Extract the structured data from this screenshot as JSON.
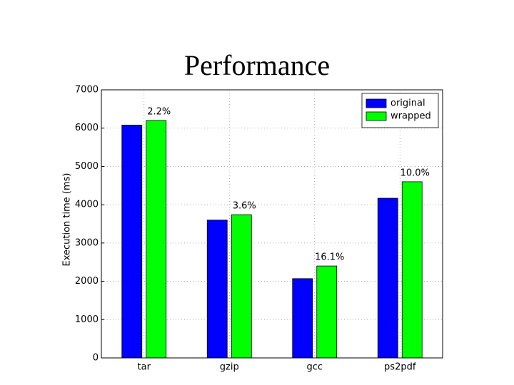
{
  "chart_data": {
    "type": "bar",
    "title": "Performance",
    "y_label": "Execution time (ms)",
    "categories": [
      "tar",
      "gzip",
      "gcc",
      "ps2pdf"
    ],
    "series": [
      {
        "name": "original",
        "color": "#0000ff",
        "values": [
          6080,
          3600,
          2070,
          4170
        ]
      },
      {
        "name": "wrapped",
        "color": "#00ff00",
        "values": [
          6200,
          3740,
          2400,
          4600
        ]
      }
    ],
    "annotations": [
      "2.2%",
      "3.6%",
      "16.1%",
      "10.0%"
    ],
    "ylim": [
      0,
      7000
    ],
    "yticks": [
      0,
      1000,
      2000,
      3000,
      4000,
      5000,
      6000,
      7000
    ],
    "grid": true,
    "legend": "upper right"
  }
}
